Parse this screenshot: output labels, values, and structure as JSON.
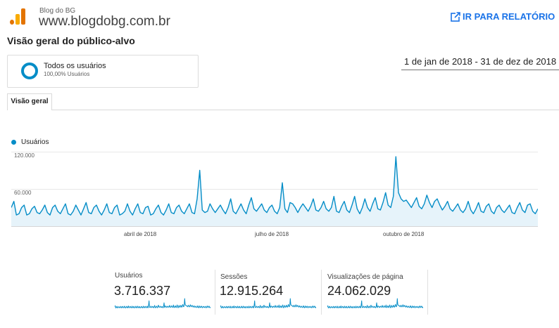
{
  "header": {
    "property_name": "Blog do BG",
    "site_url": "www.blogdobg.com.br",
    "report_link": "IR PARA RELATÓRIO",
    "report_icon": "open-in-new-icon",
    "logo_icon": "analytics-logo-icon"
  },
  "page": {
    "title": "Visão geral do público-alvo",
    "date_range": "1 de jan de 2018 - 31 de dez de 2018"
  },
  "segment": {
    "name": "Todos os usuários",
    "percentage": "100,00% Usuários",
    "icon": "segment-ring-icon"
  },
  "tabs": [
    {
      "label": "Visão geral",
      "active": true
    }
  ],
  "colors": {
    "accent": "#058dc7",
    "link": "#1a73e8",
    "logo_orange": "#f9ab00",
    "logo_dark_orange": "#e37400"
  },
  "chart_data": {
    "type": "area",
    "series": [
      {
        "name": "Usuários",
        "values": [
          30,
          40,
          18,
          20,
          30,
          34,
          18,
          20,
          28,
          32,
          22,
          20,
          26,
          34,
          22,
          18,
          30,
          34,
          24,
          20,
          28,
          36,
          20,
          18,
          24,
          34,
          26,
          18,
          28,
          38,
          22,
          20,
          30,
          34,
          24,
          18,
          26,
          36,
          22,
          20,
          30,
          34,
          18,
          20,
          24,
          36,
          24,
          18,
          28,
          36,
          22,
          20,
          30,
          32,
          18,
          20,
          28,
          34,
          22,
          18,
          26,
          36,
          22,
          20,
          30,
          34,
          24,
          20,
          28,
          36,
          22,
          20,
          44,
          90,
          26,
          22,
          24,
          36,
          28,
          22,
          28,
          34,
          26,
          20,
          30,
          44,
          24,
          20,
          28,
          36,
          26,
          20,
          34,
          46,
          28,
          24,
          30,
          36,
          26,
          22,
          30,
          34,
          24,
          20,
          30,
          70,
          28,
          22,
          38,
          36,
          30,
          22,
          30,
          36,
          30,
          24,
          32,
          44,
          26,
          24,
          30,
          40,
          28,
          24,
          30,
          48,
          24,
          22,
          32,
          40,
          26,
          22,
          34,
          48,
          28,
          20,
          30,
          44,
          30,
          24,
          36,
          46,
          28,
          26,
          38,
          54,
          34,
          30,
          48,
          112,
          54,
          44,
          40,
          42,
          36,
          30,
          38,
          46,
          32,
          28,
          36,
          50,
          38,
          30,
          40,
          44,
          34,
          26,
          32,
          40,
          28,
          24,
          30,
          36,
          26,
          22,
          28,
          40,
          26,
          20,
          28,
          38,
          24,
          22,
          32,
          36,
          24,
          20,
          30,
          34,
          26,
          22,
          28,
          34,
          22,
          20,
          30,
          38,
          26,
          22,
          34,
          36,
          24,
          20,
          28
        ]
      }
    ],
    "x_ticks": [
      "abril de 2018",
      "julho de 2018",
      "outubro de 2018"
    ],
    "y_ticks": [
      "60.000",
      "120.000"
    ],
    "ylim": [
      0,
      120000
    ],
    "y_unit_note": "",
    "grid": true,
    "legend": "top-left"
  },
  "metrics": [
    {
      "label": "Usuários",
      "value": "3.716.337"
    },
    {
      "label": "Sessões",
      "value": "12.915.264"
    },
    {
      "label": "Visualizações de página",
      "value": "24.062.029"
    }
  ]
}
